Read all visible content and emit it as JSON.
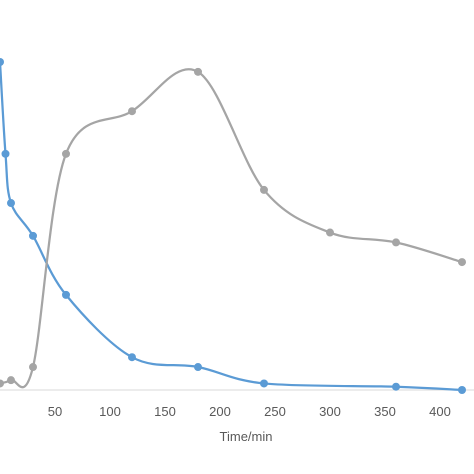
{
  "chart_data": {
    "type": "line",
    "xlabel": "Time/min",
    "xlim": [
      0,
      420
    ],
    "x_ticks": [
      50,
      100,
      150,
      200,
      250,
      300,
      350,
      400
    ],
    "ylim": [
      0,
      1
    ],
    "grid": false,
    "series": [
      {
        "color": "#5b9bd5",
        "x": [
          0,
          5,
          10,
          30,
          60,
          120,
          180,
          240,
          360,
          420
        ],
        "y": [
          1.0,
          0.72,
          0.57,
          0.47,
          0.29,
          0.1,
          0.07,
          0.02,
          0.01,
          0.0
        ]
      },
      {
        "color": "#a5a5a5",
        "x": [
          0,
          10,
          30,
          60,
          120,
          180,
          240,
          300,
          360,
          420
        ],
        "y": [
          0.02,
          0.03,
          0.07,
          0.72,
          0.85,
          0.97,
          0.61,
          0.48,
          0.45,
          0.39
        ]
      }
    ]
  }
}
